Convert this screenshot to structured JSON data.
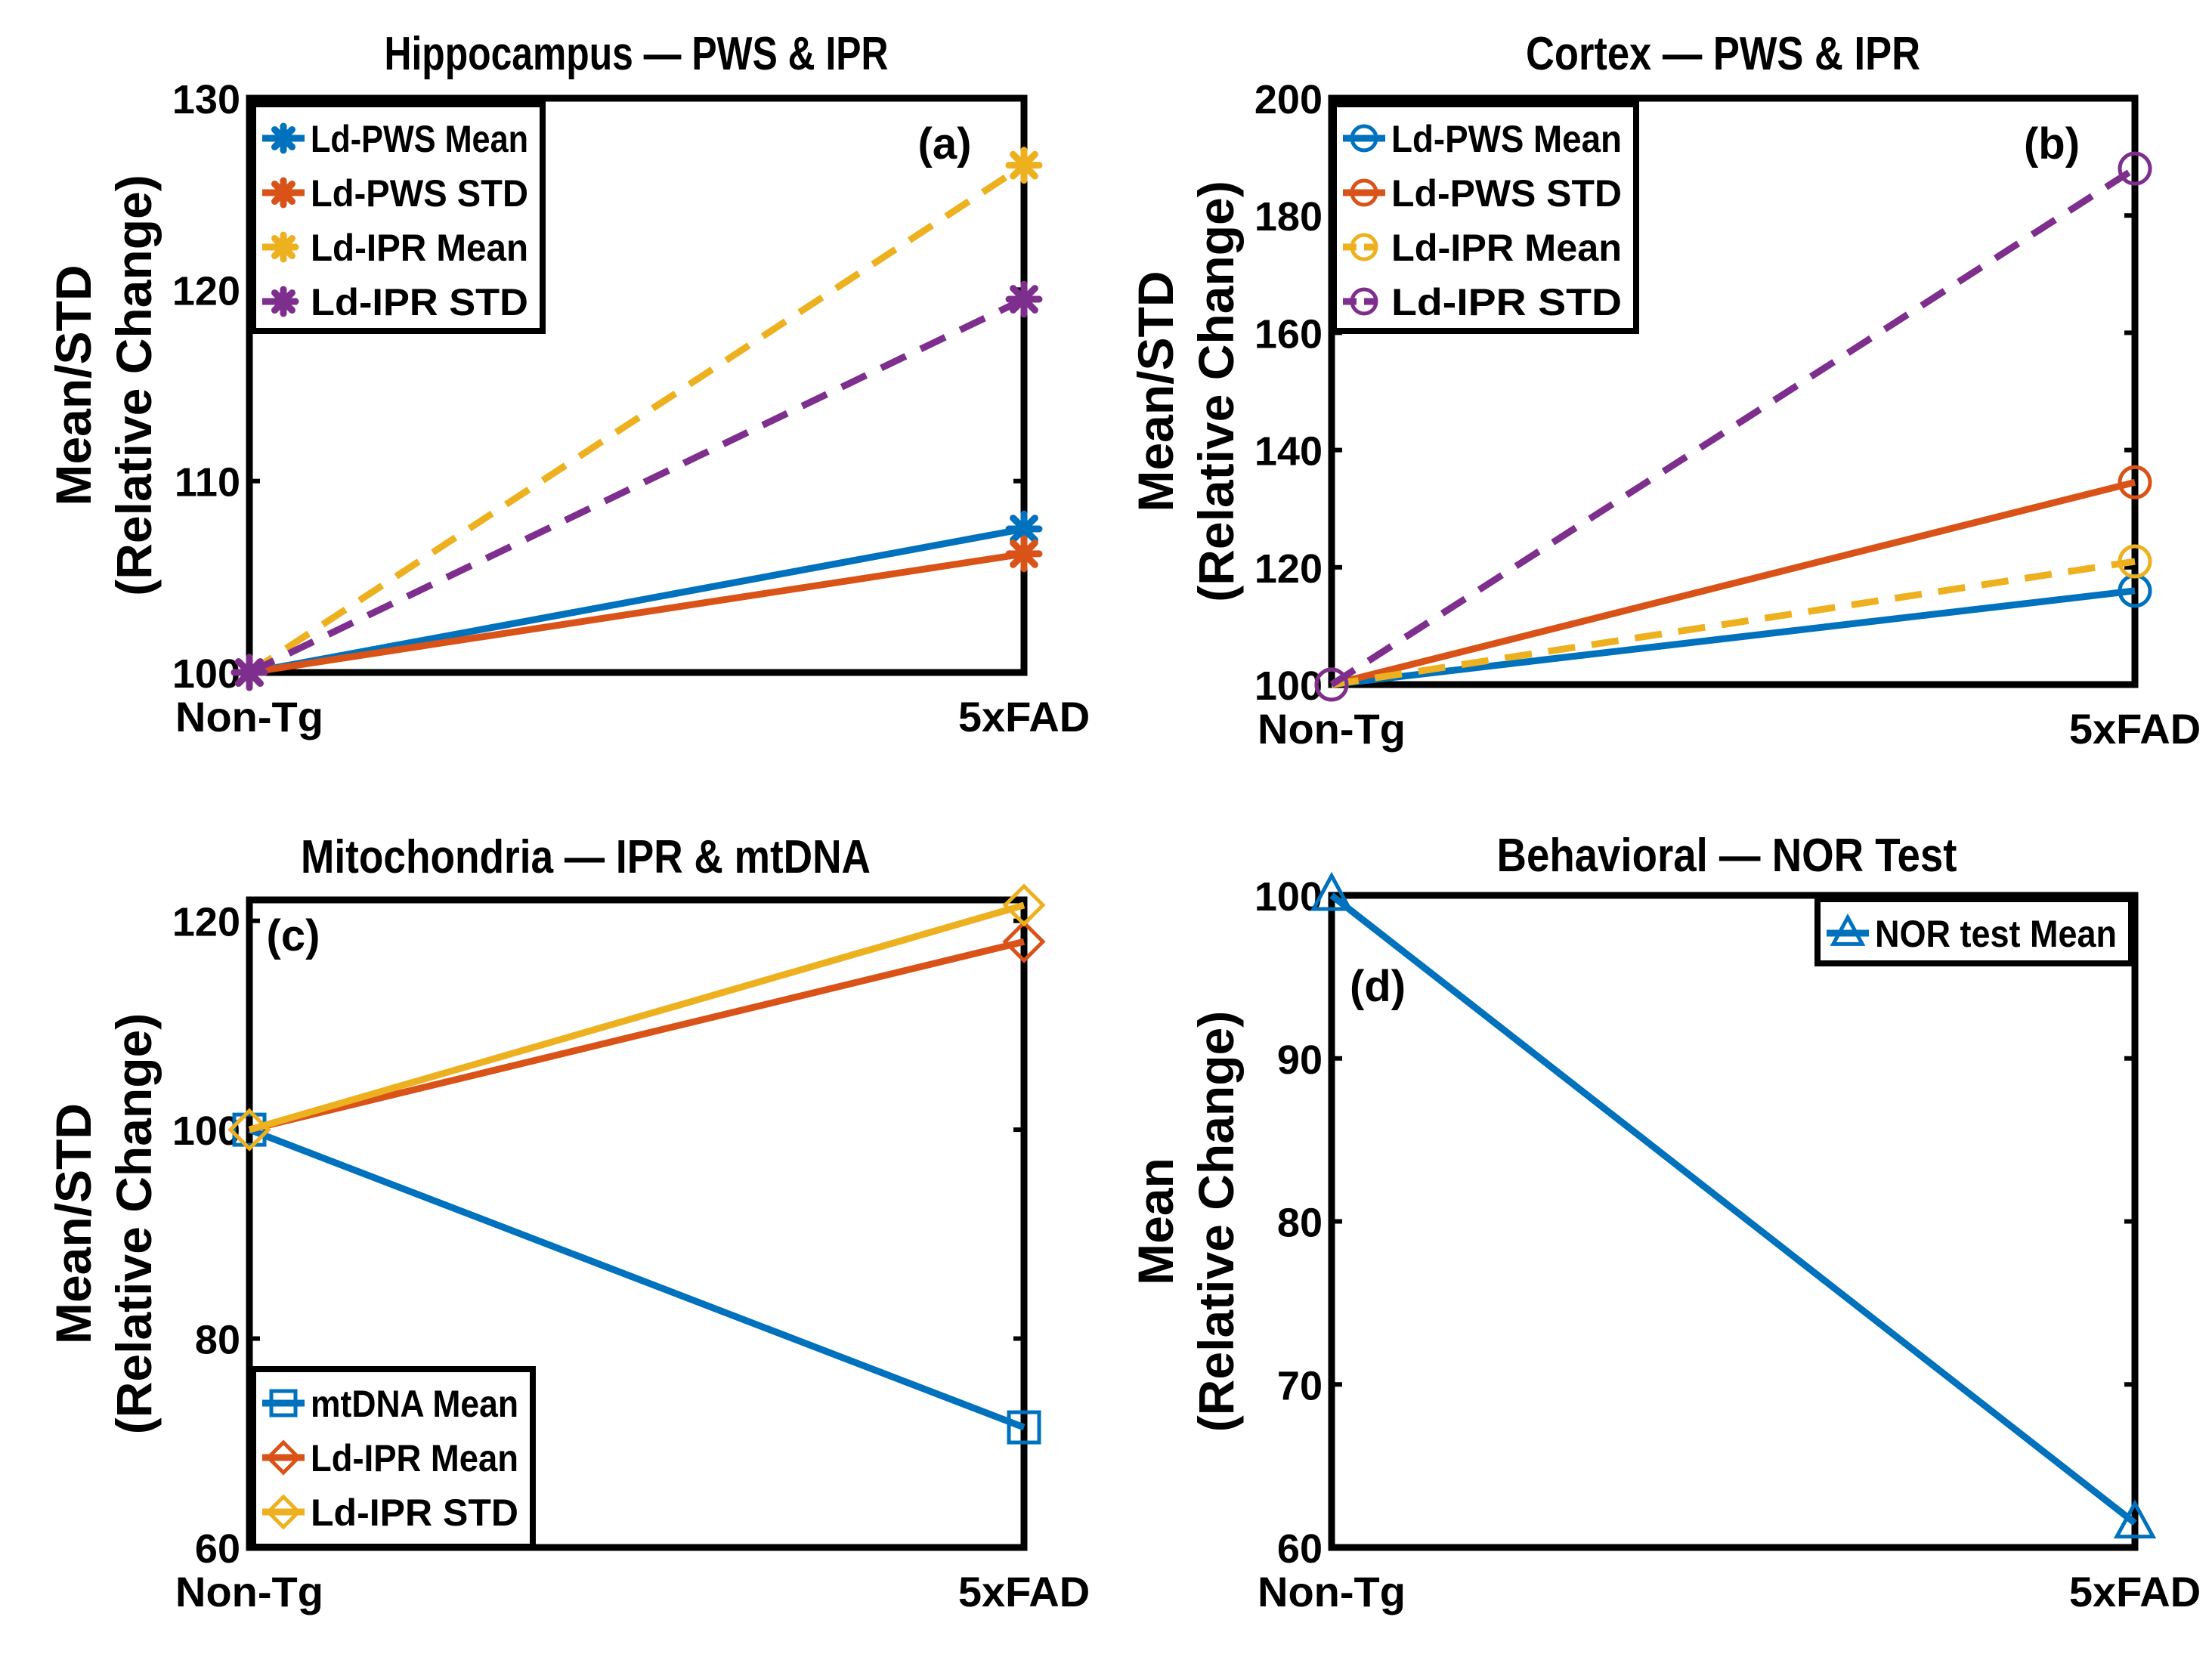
{
  "colors": {
    "blue": "#0072BD",
    "orange": "#D95319",
    "yellow": "#EDB120",
    "purple": "#7E2F8E",
    "axis": "#000000"
  },
  "chart_data": [
    {
      "id": "a",
      "type": "line",
      "title": "Hippocampus — PWS & IPR",
      "panel_label": "(a)",
      "ylabel": [
        "Mean/STD",
        "(Relative Change)"
      ],
      "categories": [
        "Non-Tg",
        "5xFAD"
      ],
      "ylim": [
        100,
        130
      ],
      "yticks": [
        100,
        110,
        120,
        130
      ],
      "legend_position": "top-left",
      "series": [
        {
          "name": "Ld-PWS Mean",
          "values": [
            100,
            107.5
          ],
          "color": "#0072BD",
          "dash": "solid",
          "marker": "asterisk"
        },
        {
          "name": "Ld-PWS STD",
          "values": [
            100,
            106.2
          ],
          "color": "#D95319",
          "dash": "solid",
          "marker": "asterisk"
        },
        {
          "name": "Ld-IPR Mean",
          "values": [
            100,
            126.5
          ],
          "color": "#EDB120",
          "dash": "dashed",
          "marker": "asterisk"
        },
        {
          "name": "Ld-IPR STD",
          "values": [
            100,
            119.5
          ],
          "color": "#7E2F8E",
          "dash": "dashed",
          "marker": "asterisk"
        }
      ]
    },
    {
      "id": "b",
      "type": "line",
      "title": "Cortex — PWS & IPR",
      "panel_label": "(b)",
      "ylabel": [
        "Mean/STD",
        "(Relative Change)"
      ],
      "categories": [
        "Non-Tg",
        "5xFAD"
      ],
      "ylim": [
        100,
        200
      ],
      "yticks": [
        100,
        120,
        140,
        160,
        180,
        200
      ],
      "legend_position": "top-left",
      "series": [
        {
          "name": "Ld-PWS Mean",
          "values": [
            100,
            116
          ],
          "color": "#0072BD",
          "dash": "solid",
          "marker": "circle"
        },
        {
          "name": "Ld-PWS STD",
          "values": [
            100,
            134.5
          ],
          "color": "#D95319",
          "dash": "solid",
          "marker": "circle"
        },
        {
          "name": "Ld-IPR Mean",
          "values": [
            100,
            121
          ],
          "color": "#EDB120",
          "dash": "dashed",
          "marker": "circle"
        },
        {
          "name": "Ld-IPR STD",
          "values": [
            100,
            188
          ],
          "color": "#7E2F8E",
          "dash": "dashed",
          "marker": "circle"
        }
      ]
    },
    {
      "id": "c",
      "type": "line",
      "title": "Mitochondria — IPR & mtDNA",
      "panel_label": "(c)",
      "ylabel": [
        "Mean/STD",
        "(Relative Change)"
      ],
      "categories": [
        "Non-Tg",
        "5xFAD"
      ],
      "ylim": [
        60,
        122
      ],
      "yticks": [
        60,
        80,
        100,
        120
      ],
      "legend_position": "bottom-left",
      "series": [
        {
          "name": "mtDNA Mean",
          "values": [
            100,
            71.5
          ],
          "color": "#0072BD",
          "dash": "solid",
          "marker": "square"
        },
        {
          "name": "Ld-IPR Mean",
          "values": [
            100,
            118
          ],
          "color": "#D95319",
          "dash": "solid",
          "marker": "diamond"
        },
        {
          "name": "Ld-IPR STD",
          "values": [
            100,
            121.5
          ],
          "color": "#EDB120",
          "dash": "solid",
          "marker": "diamond"
        }
      ]
    },
    {
      "id": "d",
      "type": "line",
      "title": "Behavioral — NOR Test",
      "panel_label": "(d)",
      "ylabel": [
        "Mean",
        "(Relative Change)"
      ],
      "categories": [
        "Non-Tg",
        "5xFAD"
      ],
      "ylim": [
        60,
        100
      ],
      "yticks": [
        60,
        70,
        80,
        90,
        100
      ],
      "legend_position": "top-right",
      "series": [
        {
          "name": "NOR test Mean",
          "values": [
            100,
            61.5
          ],
          "color": "#0072BD",
          "dash": "solid",
          "marker": "triangle"
        }
      ]
    }
  ]
}
